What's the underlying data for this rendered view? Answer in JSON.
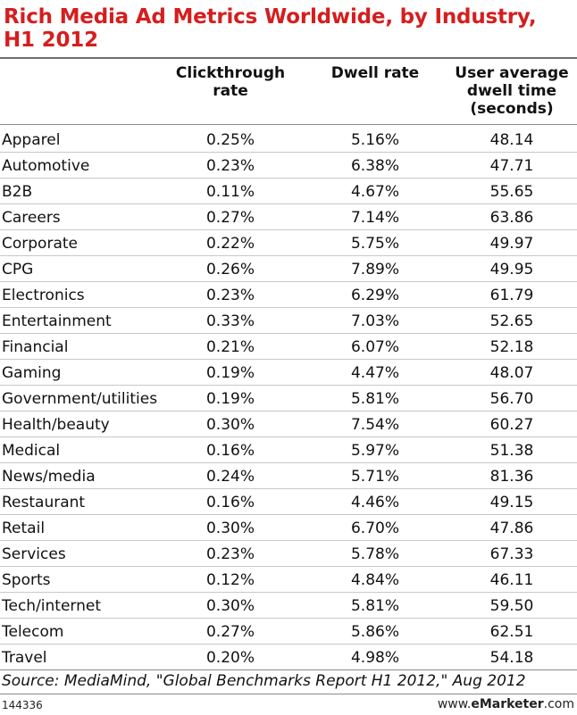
{
  "chart_data": {
    "type": "table",
    "title": "Rich Media Ad Metrics Worldwide, by Industry, H1 2012",
    "columns": [
      "Clickthrough rate",
      "Dwell rate",
      "User average dwell time (seconds)"
    ],
    "rows": [
      {
        "industry": "Apparel",
        "ctr": "0.25%",
        "dwell_rate": "5.16%",
        "dwell_time": "48.14"
      },
      {
        "industry": "Automotive",
        "ctr": "0.23%",
        "dwell_rate": "6.38%",
        "dwell_time": "47.71"
      },
      {
        "industry": "B2B",
        "ctr": "0.11%",
        "dwell_rate": "4.67%",
        "dwell_time": "55.65"
      },
      {
        "industry": "Careers",
        "ctr": "0.27%",
        "dwell_rate": "7.14%",
        "dwell_time": "63.86"
      },
      {
        "industry": "Corporate",
        "ctr": "0.22%",
        "dwell_rate": "5.75%",
        "dwell_time": "49.97"
      },
      {
        "industry": "CPG",
        "ctr": "0.26%",
        "dwell_rate": "7.89%",
        "dwell_time": "49.95"
      },
      {
        "industry": "Electronics",
        "ctr": "0.23%",
        "dwell_rate": "6.29%",
        "dwell_time": "61.79"
      },
      {
        "industry": "Entertainment",
        "ctr": "0.33%",
        "dwell_rate": "7.03%",
        "dwell_time": "52.65"
      },
      {
        "industry": "Financial",
        "ctr": "0.21%",
        "dwell_rate": "6.07%",
        "dwell_time": "52.18"
      },
      {
        "industry": "Gaming",
        "ctr": "0.19%",
        "dwell_rate": "4.47%",
        "dwell_time": "48.07"
      },
      {
        "industry": "Government/utilities",
        "ctr": "0.19%",
        "dwell_rate": "5.81%",
        "dwell_time": "56.70"
      },
      {
        "industry": "Health/beauty",
        "ctr": "0.30%",
        "dwell_rate": "7.54%",
        "dwell_time": "60.27"
      },
      {
        "industry": "Medical",
        "ctr": "0.16%",
        "dwell_rate": "5.97%",
        "dwell_time": "51.38"
      },
      {
        "industry": "News/media",
        "ctr": "0.24%",
        "dwell_rate": "5.71%",
        "dwell_time": "81.36"
      },
      {
        "industry": "Restaurant",
        "ctr": "0.16%",
        "dwell_rate": "4.46%",
        "dwell_time": "49.15"
      },
      {
        "industry": "Retail",
        "ctr": "0.30%",
        "dwell_rate": "6.70%",
        "dwell_time": "47.86"
      },
      {
        "industry": "Services",
        "ctr": "0.23%",
        "dwell_rate": "5.78%",
        "dwell_time": "67.33"
      },
      {
        "industry": "Sports",
        "ctr": "0.12%",
        "dwell_rate": "4.84%",
        "dwell_time": "46.11"
      },
      {
        "industry": "Tech/internet",
        "ctr": "0.30%",
        "dwell_rate": "5.81%",
        "dwell_time": "59.50"
      },
      {
        "industry": "Telecom",
        "ctr": "0.27%",
        "dwell_rate": "5.86%",
        "dwell_time": "62.51"
      },
      {
        "industry": "Travel",
        "ctr": "0.20%",
        "dwell_rate": "4.98%",
        "dwell_time": "54.18"
      }
    ]
  },
  "header": {
    "title_line1": "Rich Media Ad Metrics Worldwide, by Industry,",
    "title_line2": "H1 2012",
    "col_ctr_line1": "Clickthrough",
    "col_ctr_line2": "rate",
    "col_dwell_line1": "Dwell rate",
    "col_time_line1": "User average",
    "col_time_line2": "dwell time",
    "col_time_line3": "(seconds)"
  },
  "footer": {
    "source": "Source: MediaMind, \"Global Benchmarks Report H1 2012,\" Aug 2012",
    "chart_id": "144336",
    "logo_domain": "www.",
    "logo_brand": "eMarketer",
    "logo_suffix": ".com"
  },
  "colors": {
    "title": "#d51e1e",
    "rule": "#8a8a8a",
    "row_divider": "#c8c8c8",
    "text": "#111111"
  }
}
